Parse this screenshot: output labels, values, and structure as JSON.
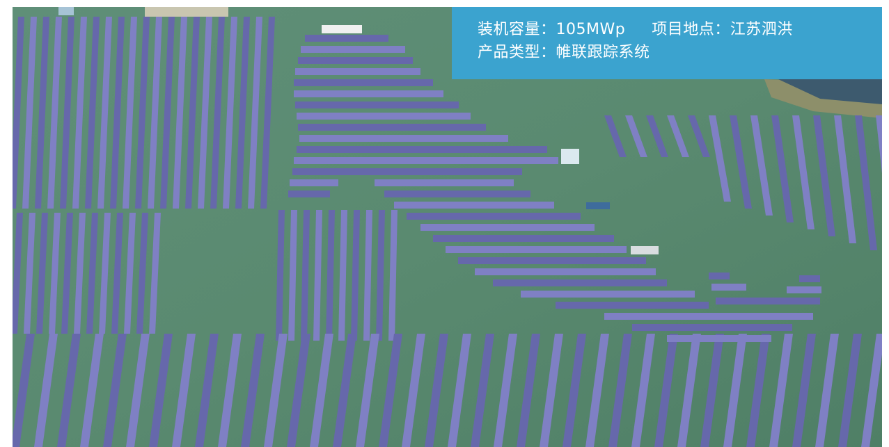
{
  "info": {
    "capacity": "装机容量：105MWp",
    "location": "项目地点：江苏泗洪",
    "product": "产品类型：帷联跟踪系统"
  },
  "colors": {
    "water": "#5d8a72",
    "panel": "#7f80c4",
    "panel_dark": "#6668ab",
    "info_box": "#3ba3cf"
  }
}
